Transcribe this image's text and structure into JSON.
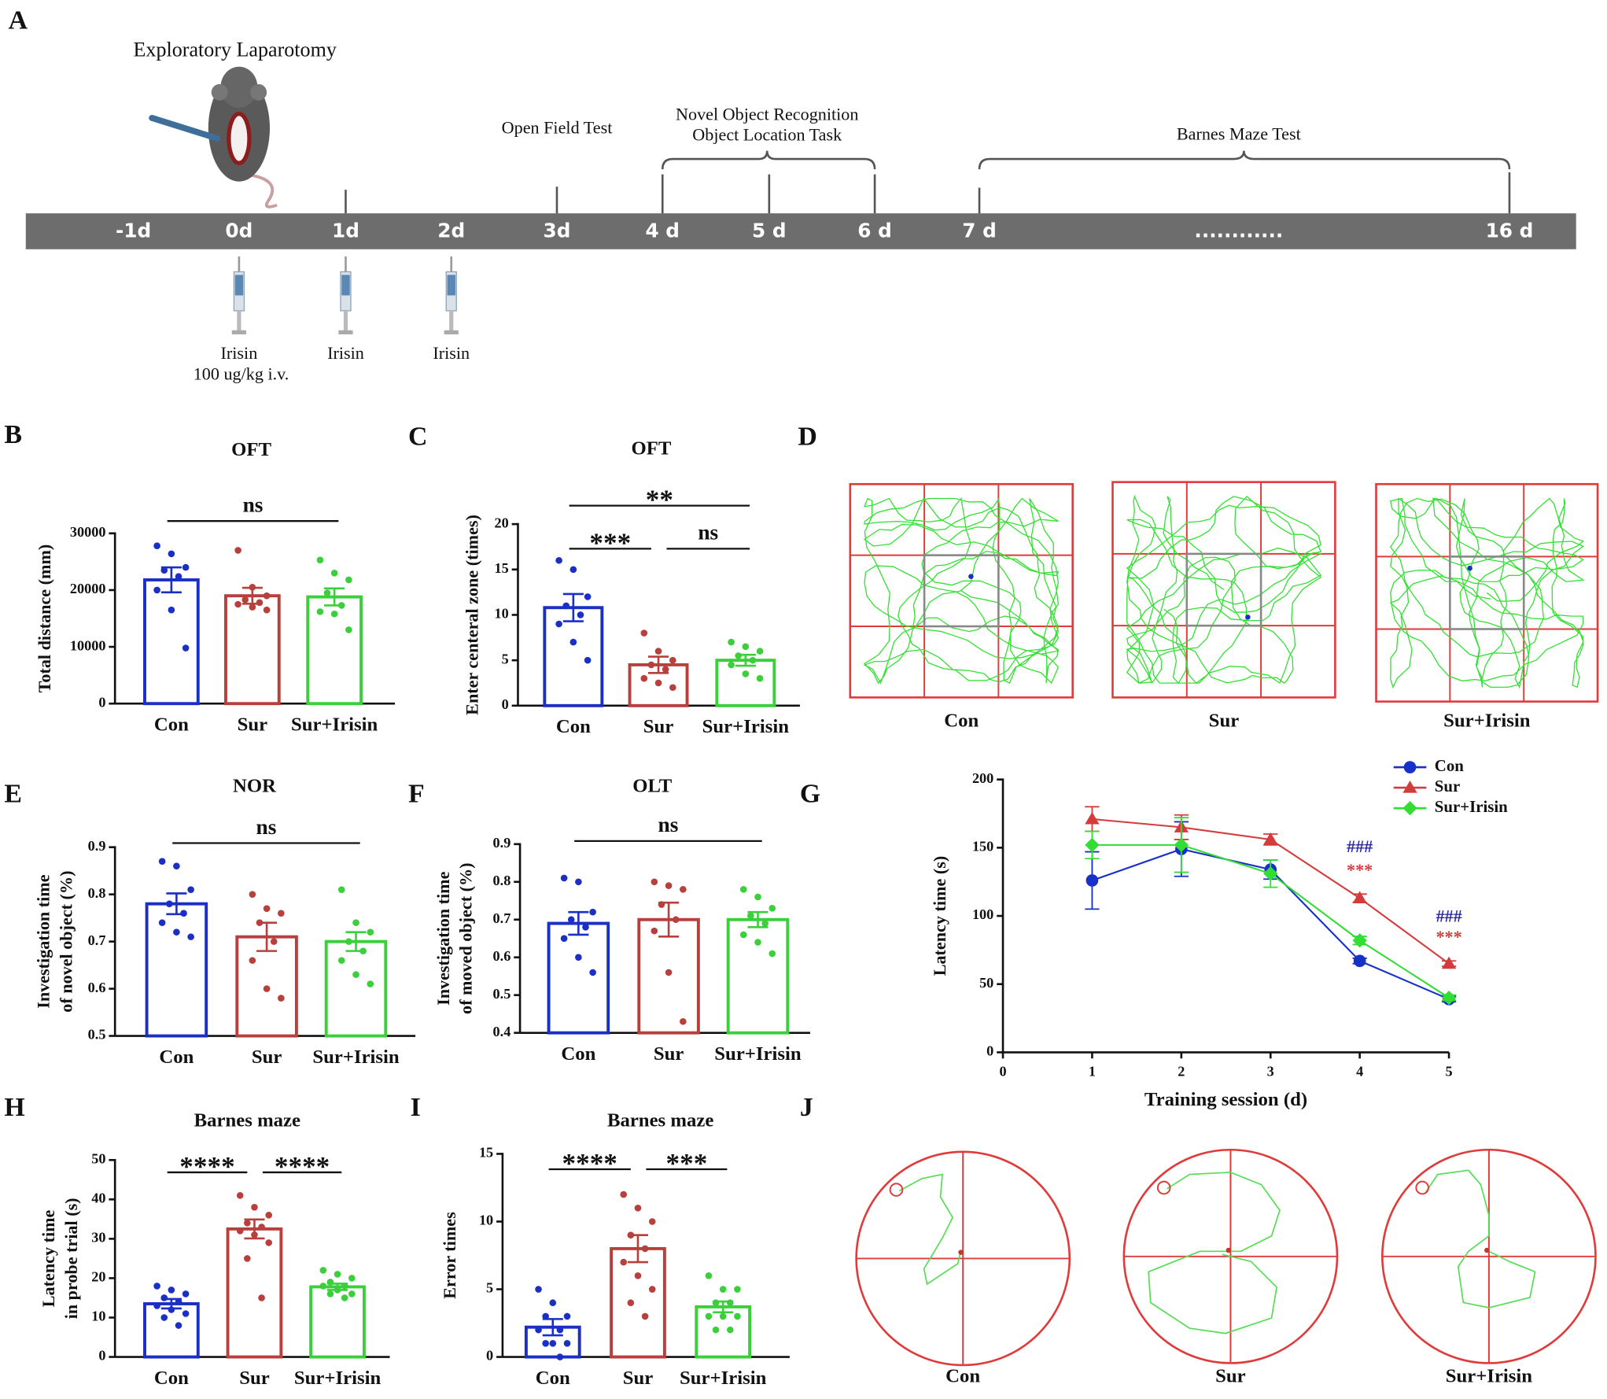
{
  "timeline": {
    "letter": "A",
    "surgery": "Exploratory Laparotomy",
    "days": [
      "-1d",
      "0d",
      "1d",
      "2d",
      "3d",
      "4 d",
      "5 d",
      "6 d",
      "7 d",
      "............",
      "16 d"
    ],
    "tests": [
      [
        "Open Field Test"
      ],
      [
        "Novel Object Recognition",
        "Object Location Task"
      ],
      [
        "Barnes Maze Test"
      ]
    ],
    "injections": [
      [
        "Irisin",
        "100 ug/kg i.v."
      ],
      [
        "Irisin"
      ],
      [
        "Irisin"
      ]
    ]
  },
  "chart_data": [
    {
      "type": "bar",
      "panel": "B",
      "title": "OFT",
      "ylabel": [
        "Total distance (mm)"
      ],
      "categories": [
        "Con",
        "Sur",
        "Sur+Irisin"
      ],
      "colors": [
        "#1a2fc4",
        "#b8403c",
        "#3ccf3c"
      ],
      "values": [
        21800,
        19000,
        18800
      ],
      "errors": [
        2200,
        1400,
        1500
      ],
      "points": [
        [
          27800,
          26400,
          24000,
          23500,
          22400,
          20000,
          16500,
          9800
        ],
        [
          27000,
          20500,
          19000,
          18300,
          17800,
          17500,
          17000,
          16500
        ],
        [
          25300,
          23000,
          21800,
          19500,
          17300,
          16200,
          15800,
          13000
        ]
      ],
      "ylim": [
        0,
        30000
      ],
      "yticks": [
        0,
        10000,
        20000,
        30000
      ],
      "brackets": [
        {
          "label": "ns",
          "between": [
            "Con",
            "Sur+Irisin"
          ]
        }
      ]
    },
    {
      "type": "bar",
      "panel": "C",
      "title": "OFT",
      "ylabel": [
        "Enter centeral zone (times)"
      ],
      "categories": [
        "Con",
        "Sur",
        "Sur+Irisin"
      ],
      "colors": [
        "#1a2fc4",
        "#b8403c",
        "#3ccf3c"
      ],
      "values": [
        10.8,
        4.5,
        5.0
      ],
      "errors": [
        1.5,
        0.9,
        0.6
      ],
      "points": [
        [
          16,
          15,
          12,
          11,
          10,
          9,
          7,
          5
        ],
        [
          8,
          6,
          5,
          4.5,
          4,
          3,
          2.5,
          2
        ],
        [
          7,
          6.5,
          6,
          5.5,
          5,
          4.5,
          3.5,
          3
        ]
      ],
      "ylim": [
        0,
        20
      ],
      "yticks": [
        0,
        5,
        10,
        15,
        20
      ],
      "brackets": [
        {
          "label": "***",
          "between": [
            "Con",
            "Sur"
          ]
        },
        {
          "label": "ns",
          "between": [
            "Sur",
            "Sur+Irisin"
          ]
        },
        {
          "label": "**",
          "between": [
            "Con",
            "Sur+Irisin"
          ]
        }
      ]
    },
    {
      "type": "bar",
      "panel": "E",
      "title": "NOR",
      "ylabel": [
        "Investigation time",
        "of novel object (%)"
      ],
      "categories": [
        "Con",
        "Sur",
        "Sur+Irisin"
      ],
      "colors": [
        "#1a2fc4",
        "#b8403c",
        "#3ccf3c"
      ],
      "values": [
        0.78,
        0.71,
        0.7
      ],
      "errors": [
        0.022,
        0.03,
        0.02
      ],
      "points": [
        [
          0.87,
          0.86,
          0.81,
          0.78,
          0.76,
          0.74,
          0.72,
          0.71
        ],
        [
          0.8,
          0.77,
          0.76,
          0.74,
          0.7,
          0.66,
          0.6,
          0.58
        ],
        [
          0.81,
          0.74,
          0.72,
          0.7,
          0.68,
          0.66,
          0.63,
          0.61
        ]
      ],
      "ylim": [
        0.5,
        0.9
      ],
      "yticks": [
        0.5,
        0.6,
        0.7,
        0.8,
        0.9
      ],
      "brackets": [
        {
          "label": "ns",
          "between": [
            "Con",
            "Sur+Irisin"
          ]
        }
      ]
    },
    {
      "type": "bar",
      "panel": "F",
      "title": "OLT",
      "ylabel": [
        "Investigation time",
        "of moved object (%)"
      ],
      "categories": [
        "Con",
        "Sur",
        "Sur+Irisin"
      ],
      "colors": [
        "#1a2fc4",
        "#b8403c",
        "#3ccf3c"
      ],
      "values": [
        0.69,
        0.7,
        0.7
      ],
      "errors": [
        0.03,
        0.045,
        0.02
      ],
      "points": [
        [
          0.81,
          0.8,
          0.72,
          0.7,
          0.68,
          0.65,
          0.6,
          0.56
        ],
        [
          0.8,
          0.79,
          0.78,
          0.74,
          0.7,
          0.67,
          0.56,
          0.43
        ],
        [
          0.78,
          0.76,
          0.73,
          0.71,
          0.69,
          0.66,
          0.64,
          0.61
        ]
      ],
      "ylim": [
        0.4,
        0.9
      ],
      "yticks": [
        0.4,
        0.5,
        0.6,
        0.7,
        0.8,
        0.9
      ],
      "brackets": [
        {
          "label": "ns",
          "between": [
            "Con",
            "Sur+Irisin"
          ]
        }
      ]
    },
    {
      "type": "line",
      "panel": "G",
      "ylabel": [
        "Latency time (s)"
      ],
      "xlabel": "Training session (d)",
      "x": [
        1,
        2,
        3,
        4,
        5
      ],
      "xlim": [
        0,
        5
      ],
      "xticks": [
        0,
        1,
        2,
        3,
        4,
        5
      ],
      "ylim": [
        0,
        200
      ],
      "yticks": [
        0,
        50,
        100,
        150,
        200
      ],
      "series": [
        {
          "name": "Con",
          "color": "#1630c8",
          "marker": "circle",
          "values": [
            126,
            149,
            134,
            67,
            39
          ],
          "errors": [
            21,
            20,
            7,
            2,
            2
          ]
        },
        {
          "name": "Sur",
          "color": "#d43c3c",
          "marker": "triangle",
          "values": [
            171,
            165,
            156,
            113,
            65
          ],
          "errors": [
            9,
            9,
            4,
            3,
            2
          ]
        },
        {
          "name": "Sur+Irisin",
          "color": "#33dd33",
          "marker": "diamond",
          "values": [
            152,
            152,
            131,
            82,
            40
          ],
          "errors": [
            10,
            20,
            10,
            3,
            2
          ]
        }
      ],
      "annotations": [
        {
          "text": "###",
          "color": "#2a2aa0",
          "x": 4
        },
        {
          "text": "***",
          "color": "#d43c3c",
          "x": 4
        },
        {
          "text": "###",
          "color": "#2a2aa0",
          "x": 5
        },
        {
          "text": "***",
          "color": "#d43c3c",
          "x": 5
        }
      ]
    },
    {
      "type": "bar",
      "panel": "H",
      "title": "Barnes maze",
      "ylabel": [
        "Latency time",
        "in probe trial (s)"
      ],
      "categories": [
        "Con",
        "Sur",
        "Sur+Irisin"
      ],
      "colors": [
        "#1a2fc4",
        "#b8403c",
        "#3ccf3c"
      ],
      "values": [
        13.5,
        32.5,
        17.8
      ],
      "errors": [
        1.2,
        2.4,
        0.8
      ],
      "points": [
        [
          18,
          17,
          16,
          15,
          14,
          13,
          12,
          11,
          10,
          8
        ],
        [
          41,
          38,
          36,
          34,
          33,
          32,
          31,
          29,
          25,
          15
        ],
        [
          22,
          21,
          20,
          19,
          18,
          18,
          17,
          16,
          16,
          15
        ]
      ],
      "ylim": [
        0,
        50
      ],
      "yticks": [
        0,
        10,
        20,
        30,
        40,
        50
      ],
      "brackets": [
        {
          "label": "****",
          "between": [
            "Con",
            "Sur"
          ]
        },
        {
          "label": "****",
          "between": [
            "Sur",
            "Sur+Irisin"
          ]
        }
      ]
    },
    {
      "type": "bar",
      "panel": "I",
      "title": "Barnes maze",
      "ylabel": [
        "Error times"
      ],
      "categories": [
        "Con",
        "Sur",
        "Sur+Irisin"
      ],
      "colors": [
        "#1a2fc4",
        "#b8403c",
        "#3ccf3c"
      ],
      "values": [
        2.2,
        8.0,
        3.7
      ],
      "errors": [
        0.6,
        1.0,
        0.4
      ],
      "points": [
        [
          5,
          4,
          3,
          3,
          2,
          2,
          1,
          1,
          1,
          0
        ],
        [
          12,
          11,
          10,
          9,
          8,
          7,
          6,
          5,
          4,
          3
        ],
        [
          6,
          5,
          5,
          4,
          4,
          3,
          3,
          3,
          2,
          2
        ]
      ],
      "ylim": [
        0,
        15
      ],
      "yticks": [
        0,
        5,
        10,
        15
      ],
      "brackets": [
        {
          "label": "****",
          "between": [
            "Con",
            "Sur"
          ]
        },
        {
          "label": "***",
          "between": [
            "Sur",
            "Sur+Irisin"
          ]
        }
      ]
    }
  ],
  "tracks": [
    {
      "letter": "D",
      "labels": [
        "Con",
        "Sur",
        "Sur+Irisin"
      ]
    },
    {
      "letter": "J",
      "labels": [
        "Con",
        "Sur",
        "Sur+Irisin"
      ]
    }
  ]
}
